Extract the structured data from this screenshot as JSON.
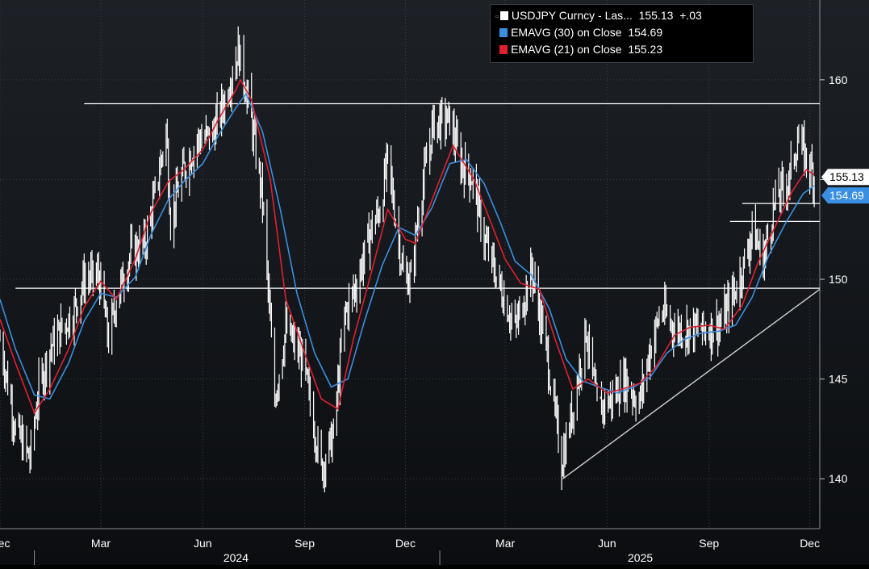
{
  "colors": {
    "background_top": "#1d2126",
    "background_bottom": "#0b0d10",
    "price": "#ffffff",
    "ema30": "#3a8fe0",
    "ema21": "#e02030",
    "gridline": "#3a4048",
    "level_line": "#ffffff",
    "trend_line": "#d0d0d0"
  },
  "legend": {
    "price": {
      "label": "USDJPY Curncy - Las...",
      "value": "155.13",
      "change": "+.03"
    },
    "ema30": {
      "label": "EMAVG (30)  on Close",
      "value": "154.69"
    },
    "ema21": {
      "label": "EMAVG (21)  on Close",
      "value": "155.23"
    }
  },
  "price_tags": {
    "last": "155.13",
    "ema30": "154.69"
  },
  "chart_data": {
    "type": "line",
    "subtype": "candlestick-style daily high/low bars with exponential moving averages",
    "title": "",
    "xlabel": "",
    "ylabel": "",
    "ylim": [
      137.5,
      164
    ],
    "xlim": [
      "2023-12-01",
      "2025-12-10"
    ],
    "y_axis_side": "right",
    "y_ticks": [
      140,
      145,
      150,
      155,
      160
    ],
    "x_ticks": [
      {
        "date": "2023-12-01",
        "label": "Dec"
      },
      {
        "date": "2024-03-01",
        "label": "Mar"
      },
      {
        "date": "2024-06-01",
        "label": "Jun"
      },
      {
        "date": "2024-09-01",
        "label": "Sep"
      },
      {
        "date": "2024-12-01",
        "label": "Dec"
      },
      {
        "date": "2025-03-01",
        "label": "Mar"
      },
      {
        "date": "2025-06-01",
        "label": "Jun"
      },
      {
        "date": "2025-09-01",
        "label": "Sep"
      },
      {
        "date": "2025-12-01",
        "label": "Dec"
      }
    ],
    "year_labels": [
      {
        "date": "2024-07-01",
        "label": "2024"
      },
      {
        "date": "2025-07-01",
        "label": "2025"
      }
    ],
    "year_separators": [
      "2024-01-01",
      "2025-01-01"
    ],
    "gridlines": true,
    "legend_position": "top-right",
    "series": [
      {
        "name": "USDJPY Curncy - Las...",
        "kind": "price",
        "points": [
          [
            "2023-12-01",
            147.0
          ],
          [
            "2023-12-15",
            142.5
          ],
          [
            "2023-12-28",
            141.0
          ],
          [
            "2024-01-05",
            144.5
          ],
          [
            "2024-01-15",
            146.5
          ],
          [
            "2024-01-25",
            147.5
          ],
          [
            "2024-02-05",
            148.3
          ],
          [
            "2024-02-15",
            150.0
          ],
          [
            "2024-02-28",
            150.2
          ],
          [
            "2024-03-08",
            147.0
          ],
          [
            "2024-03-15",
            149.0
          ],
          [
            "2024-03-28",
            151.3
          ],
          [
            "2024-04-10",
            151.8
          ],
          [
            "2024-04-20",
            154.5
          ],
          [
            "2024-04-29",
            157.5
          ],
          [
            "2024-05-03",
            153.0
          ],
          [
            "2024-05-15",
            155.5
          ],
          [
            "2024-05-28",
            157.0
          ],
          [
            "2024-06-10",
            157.3
          ],
          [
            "2024-06-21",
            159.0
          ],
          [
            "2024-07-03",
            161.5
          ],
          [
            "2024-07-12",
            159.0
          ],
          [
            "2024-07-25",
            154.0
          ],
          [
            "2024-08-05",
            144.0
          ],
          [
            "2024-08-15",
            147.5
          ],
          [
            "2024-08-30",
            146.0
          ],
          [
            "2024-09-10",
            142.5
          ],
          [
            "2024-09-16",
            140.5
          ],
          [
            "2024-09-27",
            142.2
          ],
          [
            "2024-10-07",
            148.2
          ],
          [
            "2024-10-18",
            149.8
          ],
          [
            "2024-10-31",
            152.5
          ],
          [
            "2024-11-08",
            153.5
          ],
          [
            "2024-11-15",
            156.0
          ],
          [
            "2024-11-29",
            150.2
          ],
          [
            "2024-12-06",
            150.0
          ],
          [
            "2024-12-13",
            153.5
          ],
          [
            "2024-12-26",
            157.8
          ],
          [
            "2025-01-10",
            158.0
          ],
          [
            "2025-01-20",
            155.8
          ],
          [
            "2025-01-31",
            155.0
          ],
          [
            "2025-02-10",
            152.0
          ],
          [
            "2025-02-25",
            149.5
          ],
          [
            "2025-03-10",
            147.5
          ],
          [
            "2025-03-25",
            150.5
          ],
          [
            "2025-04-07",
            146.5
          ],
          [
            "2025-04-21",
            140.8
          ],
          [
            "2025-05-01",
            143.5
          ],
          [
            "2025-05-13",
            147.5
          ],
          [
            "2025-05-23",
            143.5
          ],
          [
            "2025-06-05",
            144.0
          ],
          [
            "2025-06-17",
            145.0
          ],
          [
            "2025-06-30",
            143.8
          ],
          [
            "2025-07-10",
            146.5
          ],
          [
            "2025-07-20",
            148.5
          ],
          [
            "2025-08-01",
            147.5
          ],
          [
            "2025-08-15",
            147.5
          ],
          [
            "2025-09-01",
            147.5
          ],
          [
            "2025-09-12",
            147.8
          ],
          [
            "2025-09-25",
            149.5
          ],
          [
            "2025-10-04",
            151.0
          ],
          [
            "2025-10-10",
            152.5
          ],
          [
            "2025-10-20",
            151.0
          ],
          [
            "2025-10-31",
            154.0
          ],
          [
            "2025-11-12",
            155.0
          ],
          [
            "2025-11-20",
            157.0
          ],
          [
            "2025-11-28",
            156.0
          ],
          [
            "2025-12-05",
            155.13
          ]
        ]
      },
      {
        "name": "EMAVG (21)  on Close",
        "kind": "ema21",
        "points": [
          [
            "2023-12-01",
            148.0
          ],
          [
            "2023-12-15",
            145.8
          ],
          [
            "2024-01-01",
            143.3
          ],
          [
            "2024-01-15",
            144.5
          ],
          [
            "2024-02-01",
            146.5
          ],
          [
            "2024-02-15",
            148.6
          ],
          [
            "2024-03-01",
            149.9
          ],
          [
            "2024-03-15",
            149.0
          ],
          [
            "2024-04-01",
            151.0
          ],
          [
            "2024-04-15",
            153.3
          ],
          [
            "2024-05-01",
            154.9
          ],
          [
            "2024-05-15",
            155.5
          ],
          [
            "2024-06-01",
            156.5
          ],
          [
            "2024-06-15",
            158.0
          ],
          [
            "2024-07-01",
            159.5
          ],
          [
            "2024-07-05",
            160.0
          ],
          [
            "2024-07-15",
            159.0
          ],
          [
            "2024-08-01",
            155.0
          ],
          [
            "2024-08-15",
            149.0
          ],
          [
            "2024-09-01",
            146.3
          ],
          [
            "2024-09-16",
            144.0
          ],
          [
            "2024-10-01",
            143.5
          ],
          [
            "2024-10-15",
            147.0
          ],
          [
            "2024-11-01",
            150.5
          ],
          [
            "2024-11-15",
            153.5
          ],
          [
            "2024-12-01",
            152.0
          ],
          [
            "2024-12-10",
            151.8
          ],
          [
            "2025-01-01",
            155.0
          ],
          [
            "2025-01-13",
            156.7
          ],
          [
            "2025-02-01",
            155.0
          ],
          [
            "2025-02-15",
            153.0
          ],
          [
            "2025-03-01",
            151.0
          ],
          [
            "2025-03-15",
            149.8
          ],
          [
            "2025-04-01",
            149.5
          ],
          [
            "2025-04-15",
            147.0
          ],
          [
            "2025-05-01",
            144.5
          ],
          [
            "2025-05-15",
            145.0
          ],
          [
            "2025-06-01",
            144.3
          ],
          [
            "2025-06-15",
            144.5
          ],
          [
            "2025-07-01",
            144.8
          ],
          [
            "2025-07-15",
            145.6
          ],
          [
            "2025-08-01",
            147.2
          ],
          [
            "2025-08-15",
            147.6
          ],
          [
            "2025-09-01",
            147.7
          ],
          [
            "2025-09-15",
            147.5
          ],
          [
            "2025-10-01",
            148.7
          ],
          [
            "2025-10-15",
            150.8
          ],
          [
            "2025-11-01",
            152.8
          ],
          [
            "2025-11-15",
            154.4
          ],
          [
            "2025-11-28",
            155.5
          ],
          [
            "2025-12-05",
            155.23
          ]
        ]
      },
      {
        "name": "EMAVG (30)  on Close",
        "kind": "ema30",
        "points": [
          [
            "2023-12-01",
            149.0
          ],
          [
            "2023-12-15",
            146.5
          ],
          [
            "2024-01-01",
            144.2
          ],
          [
            "2024-01-15",
            144.0
          ],
          [
            "2024-02-01",
            145.8
          ],
          [
            "2024-02-15",
            147.9
          ],
          [
            "2024-03-01",
            149.3
          ],
          [
            "2024-03-15",
            149.1
          ],
          [
            "2024-04-01",
            150.1
          ],
          [
            "2024-04-15",
            152.2
          ],
          [
            "2024-05-01",
            154.0
          ],
          [
            "2024-05-15",
            154.9
          ],
          [
            "2024-06-01",
            155.8
          ],
          [
            "2024-06-15",
            157.2
          ],
          [
            "2024-07-01",
            158.6
          ],
          [
            "2024-07-10",
            159.3
          ],
          [
            "2024-07-25",
            157.4
          ],
          [
            "2024-08-10",
            153.5
          ],
          [
            "2024-08-25",
            149.3
          ],
          [
            "2024-09-10",
            146.3
          ],
          [
            "2024-09-25",
            144.6
          ],
          [
            "2024-10-10",
            145.0
          ],
          [
            "2024-10-25",
            147.9
          ],
          [
            "2024-11-10",
            150.7
          ],
          [
            "2024-11-25",
            152.6
          ],
          [
            "2024-12-10",
            152.2
          ],
          [
            "2024-12-25",
            153.6
          ],
          [
            "2025-01-10",
            155.8
          ],
          [
            "2025-01-25",
            156.0
          ],
          [
            "2025-02-10",
            154.8
          ],
          [
            "2025-02-25",
            152.8
          ],
          [
            "2025-03-10",
            150.9
          ],
          [
            "2025-03-25",
            150.2
          ],
          [
            "2025-04-10",
            148.5
          ],
          [
            "2025-04-25",
            146.0
          ],
          [
            "2025-05-10",
            144.9
          ],
          [
            "2025-05-25",
            144.6
          ],
          [
            "2025-06-10",
            144.3
          ],
          [
            "2025-06-25",
            144.6
          ],
          [
            "2025-07-10",
            145.1
          ],
          [
            "2025-07-25",
            146.3
          ],
          [
            "2025-08-10",
            147.0
          ],
          [
            "2025-08-25",
            147.3
          ],
          [
            "2025-09-10",
            147.4
          ],
          [
            "2025-09-25",
            147.7
          ],
          [
            "2025-10-10",
            149.1
          ],
          [
            "2025-10-25",
            151.2
          ],
          [
            "2025-11-10",
            152.9
          ],
          [
            "2025-11-25",
            154.3
          ],
          [
            "2025-12-05",
            154.69
          ]
        ]
      }
    ],
    "annotations": [
      {
        "kind": "level",
        "y": 158.8,
        "from": "2024-02-15",
        "to": "2025-12-10"
      },
      {
        "kind": "level",
        "y": 153.8,
        "from": "2025-10-01",
        "to": "2025-12-10"
      },
      {
        "kind": "level",
        "y": 152.9,
        "from": "2025-09-20",
        "to": "2025-12-10"
      },
      {
        "kind": "level",
        "y": 149.55,
        "from": "2023-12-15",
        "to": "2025-12-10"
      },
      {
        "kind": "trendline",
        "from": [
          "2025-04-22",
          140.0
        ],
        "to": [
          "2025-12-10",
          149.5
        ]
      }
    ]
  }
}
